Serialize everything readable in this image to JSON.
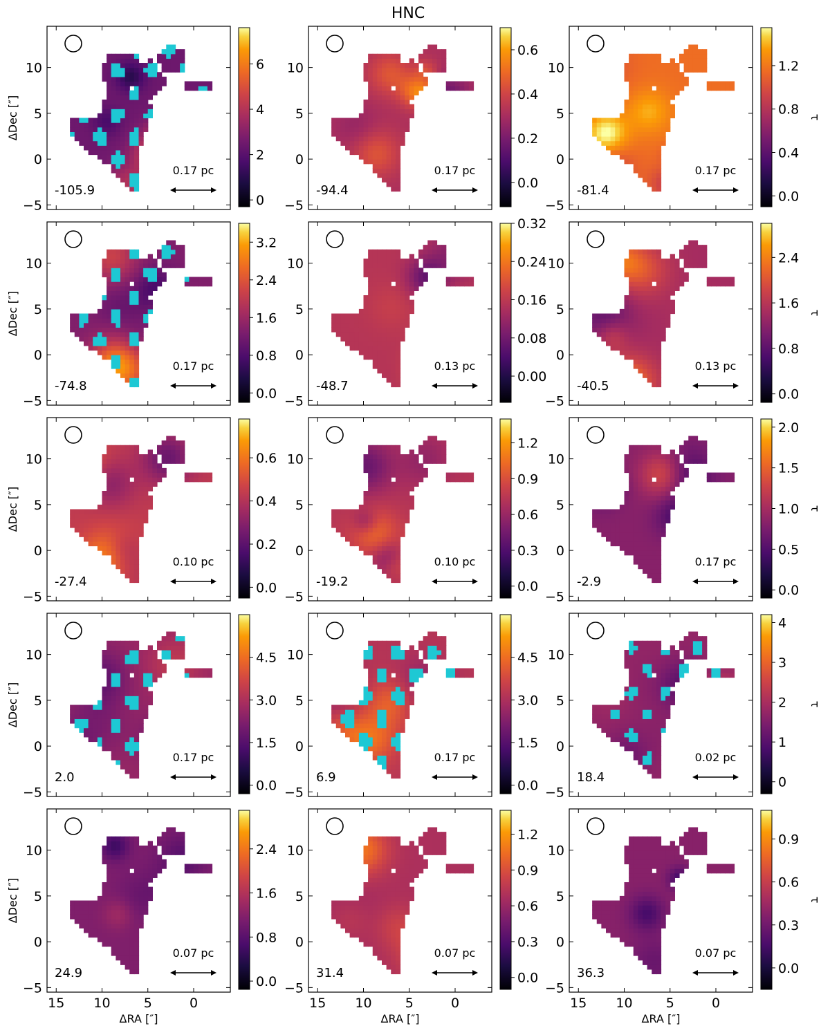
{
  "figure": {
    "title": "HNC",
    "xlabel": "ΔRA [″]",
    "ylabel": "ΔDec [″]",
    "cbar_label": "τ",
    "colormap": [
      "#000004",
      "#420a68",
      "#932667",
      "#dd513a",
      "#fca50a",
      "#fcffa4"
    ],
    "mask_color": "#1ec8d4"
  },
  "chart_data": {
    "type": "heatmap",
    "title": "HNC",
    "xlabel": "ΔRA [″]",
    "ylabel": "ΔDec [″]",
    "xlim": [
      16,
      -4
    ],
    "ylim": [
      -5.5,
      14.5
    ],
    "xticks": [
      15,
      10,
      5,
      0
    ],
    "yticks": [
      -5,
      0,
      5,
      10
    ],
    "xtick_labels": [
      "15",
      "10",
      "5",
      "0"
    ],
    "ytick_labels": [
      "−5",
      "0",
      "5",
      "10"
    ],
    "panels": [
      {
        "velocity": "-105.9",
        "scale": "0.17 pc",
        "cbar_min": -0.3,
        "cbar_max": 7.6,
        "cbar_ticks": [
          "0",
          "2",
          "4",
          "6"
        ],
        "cbar_tick_values": [
          0,
          2,
          4,
          6
        ],
        "mean": 0.35,
        "masked": 0.42
      },
      {
        "velocity": "-94.4",
        "scale": "0.17 pc",
        "cbar_min": -0.11,
        "cbar_max": 0.7,
        "cbar_ticks": [
          "0.0",
          "0.2",
          "0.4",
          "0.6"
        ],
        "cbar_tick_values": [
          0.0,
          0.2,
          0.4,
          0.6
        ],
        "mean": 0.52,
        "masked": 0
      },
      {
        "velocity": "-81.4",
        "scale": "0.17 pc",
        "cbar_min": -0.1,
        "cbar_max": 1.55,
        "cbar_ticks": [
          "0.0",
          "0.4",
          "0.8",
          "1.2"
        ],
        "cbar_tick_values": [
          0.0,
          0.4,
          0.8,
          1.2
        ],
        "mean": 0.76,
        "masked": 0
      },
      {
        "velocity": "-74.8",
        "scale": "0.17 pc",
        "cbar_min": -0.2,
        "cbar_max": 3.6,
        "cbar_ticks": [
          "0.0",
          "0.8",
          "1.6",
          "2.4",
          "3.2"
        ],
        "cbar_tick_values": [
          0.0,
          0.8,
          1.6,
          2.4,
          3.2
        ],
        "mean": 0.4,
        "masked": 0.48
      },
      {
        "velocity": "-48.7",
        "scale": "0.13 pc",
        "cbar_min": -0.055,
        "cbar_max": 0.32,
        "cbar_ticks": [
          "0.00",
          "0.08",
          "0.16",
          "0.24",
          "0.32"
        ],
        "cbar_tick_values": [
          0.0,
          0.08,
          0.16,
          0.24,
          0.32
        ],
        "mean": 0.55,
        "masked": 0
      },
      {
        "velocity": "-40.5",
        "scale": "0.13 pc",
        "cbar_min": -0.15,
        "cbar_max": 3.0,
        "cbar_ticks": [
          "0.0",
          "0.8",
          "1.6",
          "2.4"
        ],
        "cbar_tick_values": [
          0.0,
          0.8,
          1.6,
          2.4
        ],
        "mean": 0.5,
        "masked": 0
      },
      {
        "velocity": "-27.4",
        "scale": "0.10 pc",
        "cbar_min": -0.05,
        "cbar_max": 0.78,
        "cbar_ticks": [
          "0.0",
          "0.2",
          "0.4",
          "0.6"
        ],
        "cbar_tick_values": [
          0.0,
          0.2,
          0.4,
          0.6
        ],
        "mean": 0.58,
        "masked": 0
      },
      {
        "velocity": "-19.2",
        "scale": "0.10 pc",
        "cbar_min": -0.1,
        "cbar_max": 1.4,
        "cbar_ticks": [
          "0.0",
          "0.3",
          "0.6",
          "0.9",
          "1.2"
        ],
        "cbar_tick_values": [
          0.0,
          0.3,
          0.6,
          0.9,
          1.2
        ],
        "mean": 0.55,
        "masked": 0
      },
      {
        "velocity": "-2.9",
        "scale": "0.17 pc",
        "cbar_min": -0.1,
        "cbar_max": 2.1,
        "cbar_ticks": [
          "0.0",
          "0.5",
          "1.0",
          "1.5",
          "2.0"
        ],
        "cbar_tick_values": [
          0.0,
          0.5,
          1.0,
          1.5,
          2.0
        ],
        "mean": 0.42,
        "masked": 0
      },
      {
        "velocity": "2.0",
        "scale": "0.17 pc",
        "cbar_min": -0.3,
        "cbar_max": 6.0,
        "cbar_ticks": [
          "0.0",
          "1.5",
          "3.0",
          "4.5"
        ],
        "cbar_tick_values": [
          0.0,
          1.5,
          3.0,
          4.5
        ],
        "mean": 0.46,
        "masked": 0.5
      },
      {
        "velocity": "6.9",
        "scale": "0.17 pc",
        "cbar_min": -0.3,
        "cbar_max": 6.0,
        "cbar_ticks": [
          "0.0",
          "1.5",
          "3.0",
          "4.5"
        ],
        "cbar_tick_values": [
          0.0,
          1.5,
          3.0,
          4.5
        ],
        "mean": 0.55,
        "masked": 0.38
      },
      {
        "velocity": "18.4",
        "scale": "0.02 pc",
        "cbar_min": -0.3,
        "cbar_max": 4.2,
        "cbar_ticks": [
          "0",
          "1",
          "2",
          "3",
          "4"
        ],
        "cbar_tick_values": [
          0,
          1,
          2,
          3,
          4
        ],
        "mean": 0.45,
        "masked": 0.6
      },
      {
        "velocity": "24.9",
        "scale": "0.07 pc",
        "cbar_min": -0.15,
        "cbar_max": 3.1,
        "cbar_ticks": [
          "0.0",
          "0.8",
          "1.6",
          "2.4"
        ],
        "cbar_tick_values": [
          0.0,
          0.8,
          1.6,
          2.4
        ],
        "mean": 0.4,
        "masked": 0
      },
      {
        "velocity": "31.4",
        "scale": "0.07 pc",
        "cbar_min": -0.1,
        "cbar_max": 1.4,
        "cbar_ticks": [
          "0.0",
          "0.3",
          "0.6",
          "0.9",
          "1.2"
        ],
        "cbar_tick_values": [
          0.0,
          0.3,
          0.6,
          0.9,
          1.2
        ],
        "mean": 0.52,
        "masked": 0
      },
      {
        "velocity": "36.3",
        "scale": "0.07 pc",
        "cbar_min": -0.15,
        "cbar_max": 1.1,
        "cbar_ticks": [
          "0.0",
          "0.3",
          "0.6",
          "0.9"
        ],
        "cbar_tick_values": [
          0.0,
          0.3,
          0.6,
          0.9
        ],
        "mean": 0.42,
        "masked": 0
      }
    ]
  }
}
